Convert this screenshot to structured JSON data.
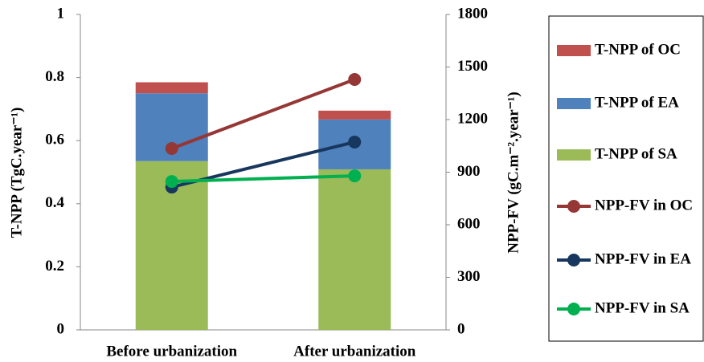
{
  "chart_data": {
    "type": "bar",
    "categories": [
      "Before urbanization",
      "After urbanization"
    ],
    "ylabel": "T-NPP  (TgC.year⁻¹)",
    "y2label": "NPP-FV (gC.m⁻².year⁻¹)",
    "ylim": [
      0,
      1
    ],
    "yticks": [
      0,
      0.2,
      0.4,
      0.6,
      0.8,
      1
    ],
    "y2lim": [
      0,
      1800
    ],
    "y2ticks": [
      0,
      300,
      600,
      900,
      1200,
      1500,
      1800
    ],
    "grid": false,
    "legend": "right",
    "series": [
      {
        "name": "T-NPP of OC",
        "type": "bar",
        "color": "#c0504d",
        "values": [
          0.035,
          0.028
        ]
      },
      {
        "name": "T-NPP of EA",
        "type": "bar",
        "color": "#4f81bd",
        "values": [
          0.215,
          0.158
        ]
      },
      {
        "name": "T-NPP of SA",
        "type": "bar",
        "color": "#9bbb59",
        "values": [
          0.535,
          0.509
        ]
      },
      {
        "name": "NPP-FV in OC",
        "type": "line",
        "axis": "y2",
        "color": "#953735",
        "values": [
          1035,
          1429
        ]
      },
      {
        "name": "NPP-FV in EA",
        "type": "line",
        "axis": "y2",
        "color": "#17375e",
        "values": [
          815,
          1072
        ]
      },
      {
        "name": "NPP-FV in SA",
        "type": "line",
        "axis": "y2",
        "color": "#00b050",
        "values": [
          847,
          879
        ]
      }
    ]
  }
}
